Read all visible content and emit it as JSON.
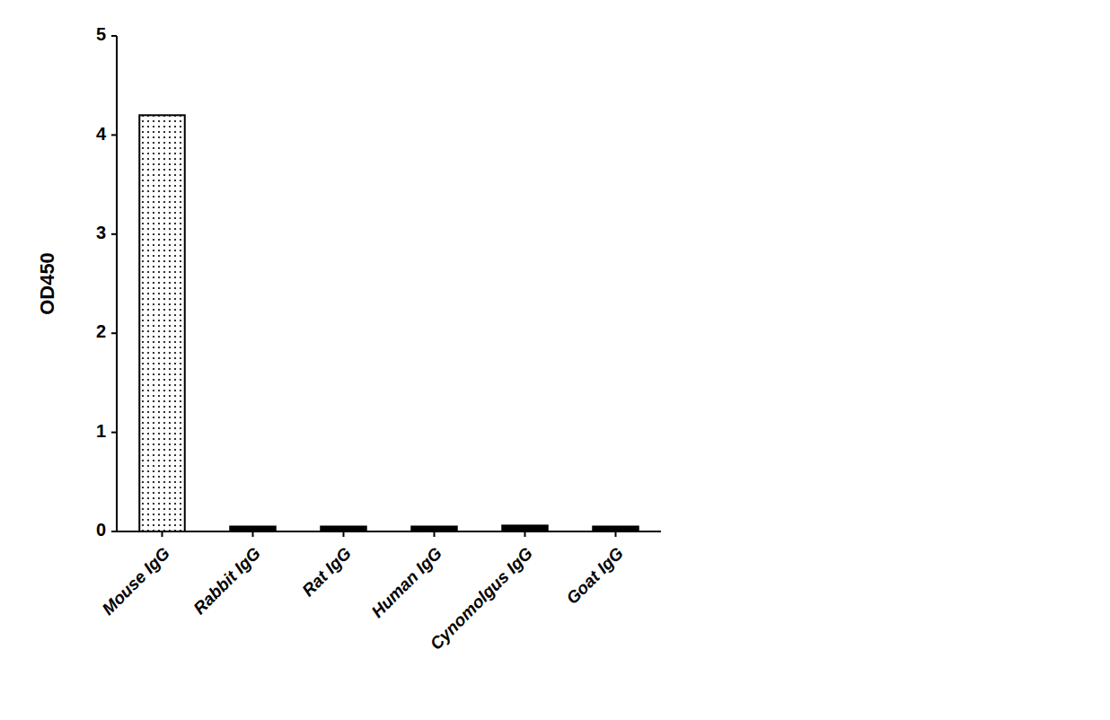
{
  "chart_data": {
    "type": "bar",
    "categories": [
      "Mouse IgG",
      "Rabbit IgG",
      "Rat IgG",
      "Human IgG",
      "Cynomolgus IgG",
      "Goat IgG"
    ],
    "values": [
      4.2,
      0.05,
      0.05,
      0.05,
      0.06,
      0.05
    ],
    "colors": [
      "#ffffff",
      "#000000",
      "#000000",
      "#000000",
      "#000000",
      "#000000"
    ],
    "ylabel": "OD450",
    "ylim": [
      0,
      5
    ],
    "yticks": [
      0,
      1,
      2,
      3,
      4,
      5
    ],
    "grid": false
  }
}
